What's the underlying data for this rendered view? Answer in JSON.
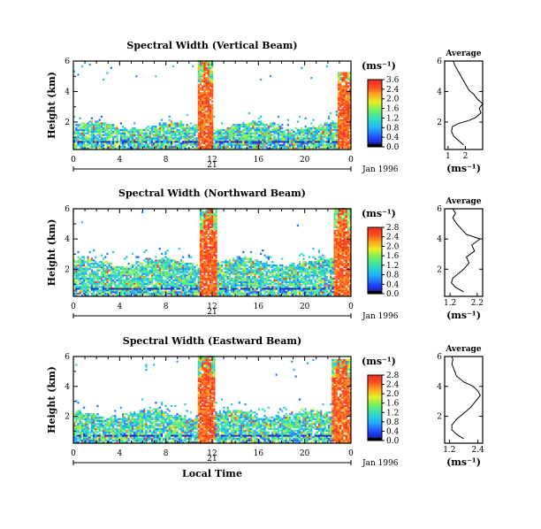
{
  "chart_data": [
    {
      "type": "heatmap",
      "title": "Spectral Width (Vertical Beam)",
      "ylabel": "Height (km)",
      "x_ticks": [
        "0",
        "4",
        "8",
        "12",
        "16",
        "20",
        "0"
      ],
      "y_ticks": [
        "6",
        "4",
        "2"
      ],
      "day_label": "21",
      "date_label": "Jan 1996",
      "colorbar": {
        "unit": "(ms⁻¹)",
        "ticks": [
          "3.6",
          "2.4",
          "2.0",
          "1.6",
          "1.2",
          "0.8",
          "0.4",
          "0.0"
        ]
      },
      "average": {
        "title": "Average",
        "xlabel": "(ms⁻¹)",
        "x_ticks": [
          "1",
          "2"
        ],
        "y_ticks": [
          "6",
          "4",
          "2"
        ],
        "x_range": [
          0.8,
          3.0
        ],
        "profile": [
          [
            1.9,
            0.5
          ],
          [
            1.6,
            0.8
          ],
          [
            1.3,
            1.1
          ],
          [
            1.2,
            1.4
          ],
          [
            1.25,
            1.7
          ],
          [
            1.6,
            1.9
          ],
          [
            2.2,
            2.1
          ],
          [
            2.6,
            2.3
          ],
          [
            2.9,
            2.6
          ],
          [
            2.8,
            2.9
          ],
          [
            3.0,
            3.2
          ],
          [
            2.7,
            3.5
          ],
          [
            2.5,
            3.8
          ],
          [
            2.2,
            4.1
          ],
          [
            2.0,
            4.5
          ],
          [
            1.8,
            4.9
          ],
          [
            1.6,
            5.3
          ],
          [
            1.4,
            5.7
          ],
          [
            1.3,
            6.0
          ]
        ]
      },
      "pattern": {
        "base_top_km": 1.7,
        "plume1": [
          10.6,
          12.0
        ],
        "plume1_top_km": 6.0,
        "plume2": [
          22.8,
          24.0
        ],
        "plume2_top_km": 5.2
      }
    },
    {
      "type": "heatmap",
      "title": "Spectral Width (Northward Beam)",
      "ylabel": "Height (km)",
      "x_ticks": [
        "0",
        "4",
        "8",
        "12",
        "16",
        "20",
        "0"
      ],
      "y_ticks": [
        "6",
        "4",
        "2"
      ],
      "day_label": "21",
      "date_label": "Jan 1996",
      "colorbar": {
        "unit": "(ms⁻¹)",
        "ticks": [
          "2.8",
          "2.4",
          "2.0",
          "1.6",
          "1.2",
          "0.8",
          "0.4",
          "0.0"
        ]
      },
      "average": {
        "title": "Average",
        "xlabel": "(ms⁻¹)",
        "x_ticks": [
          "1.2",
          "2.2"
        ],
        "y_ticks": [
          "6",
          "4",
          "2"
        ],
        "x_range": [
          1.0,
          2.4
        ],
        "profile": [
          [
            1.7,
            0.5
          ],
          [
            1.4,
            0.8
          ],
          [
            1.25,
            1.1
          ],
          [
            1.3,
            1.4
          ],
          [
            1.5,
            1.7
          ],
          [
            1.7,
            2.0
          ],
          [
            1.9,
            2.4
          ],
          [
            1.8,
            2.8
          ],
          [
            2.1,
            3.2
          ],
          [
            2.0,
            3.6
          ],
          [
            2.3,
            4.0
          ],
          [
            1.8,
            4.3
          ],
          [
            1.6,
            4.7
          ],
          [
            1.45,
            5.0
          ],
          [
            1.3,
            5.4
          ],
          [
            1.4,
            5.7
          ],
          [
            1.3,
            6.0
          ]
        ]
      },
      "pattern": {
        "base_top_km": 2.4,
        "plume1": [
          10.8,
          12.4
        ],
        "plume1_top_km": 6.0,
        "plume2": [
          22.4,
          24.0
        ],
        "plume2_top_km": 6.0
      }
    },
    {
      "type": "heatmap",
      "title": "Spectral Width (Eastward Beam)",
      "ylabel": "Height (km)",
      "x_ticks": [
        "0",
        "4",
        "8",
        "12",
        "16",
        "20",
        "0"
      ],
      "y_ticks": [
        "6",
        "4",
        "2"
      ],
      "day_label": "21",
      "date_label": "Jan 1996",
      "x_axis_label": "Local Time",
      "colorbar": {
        "unit": "(ms⁻¹)",
        "ticks": [
          "2.8",
          "2.4",
          "2.0",
          "1.6",
          "1.2",
          "0.8",
          "0.4",
          "0.0"
        ]
      },
      "average": {
        "title": "Average",
        "xlabel": "(ms⁻¹)",
        "x_ticks": [
          "1.2",
          "2.4"
        ],
        "y_ticks": [
          "6",
          "4",
          "2"
        ],
        "x_range": [
          1.0,
          2.6
        ],
        "profile": [
          [
            1.8,
            0.5
          ],
          [
            1.5,
            0.8
          ],
          [
            1.3,
            1.1
          ],
          [
            1.3,
            1.4
          ],
          [
            1.5,
            1.8
          ],
          [
            1.8,
            2.2
          ],
          [
            2.1,
            2.6
          ],
          [
            2.3,
            3.0
          ],
          [
            2.5,
            3.4
          ],
          [
            2.4,
            3.7
          ],
          [
            2.2,
            4.0
          ],
          [
            1.8,
            4.3
          ],
          [
            1.5,
            4.7
          ],
          [
            1.4,
            5.1
          ],
          [
            1.3,
            5.5
          ],
          [
            1.35,
            5.8
          ],
          [
            1.3,
            6.0
          ]
        ]
      },
      "pattern": {
        "base_top_km": 2.1,
        "plume1": [
          10.6,
          12.2
        ],
        "plume1_top_km": 6.0,
        "plume2": [
          22.2,
          24.0
        ],
        "plume2_top_km": 5.8
      }
    }
  ]
}
